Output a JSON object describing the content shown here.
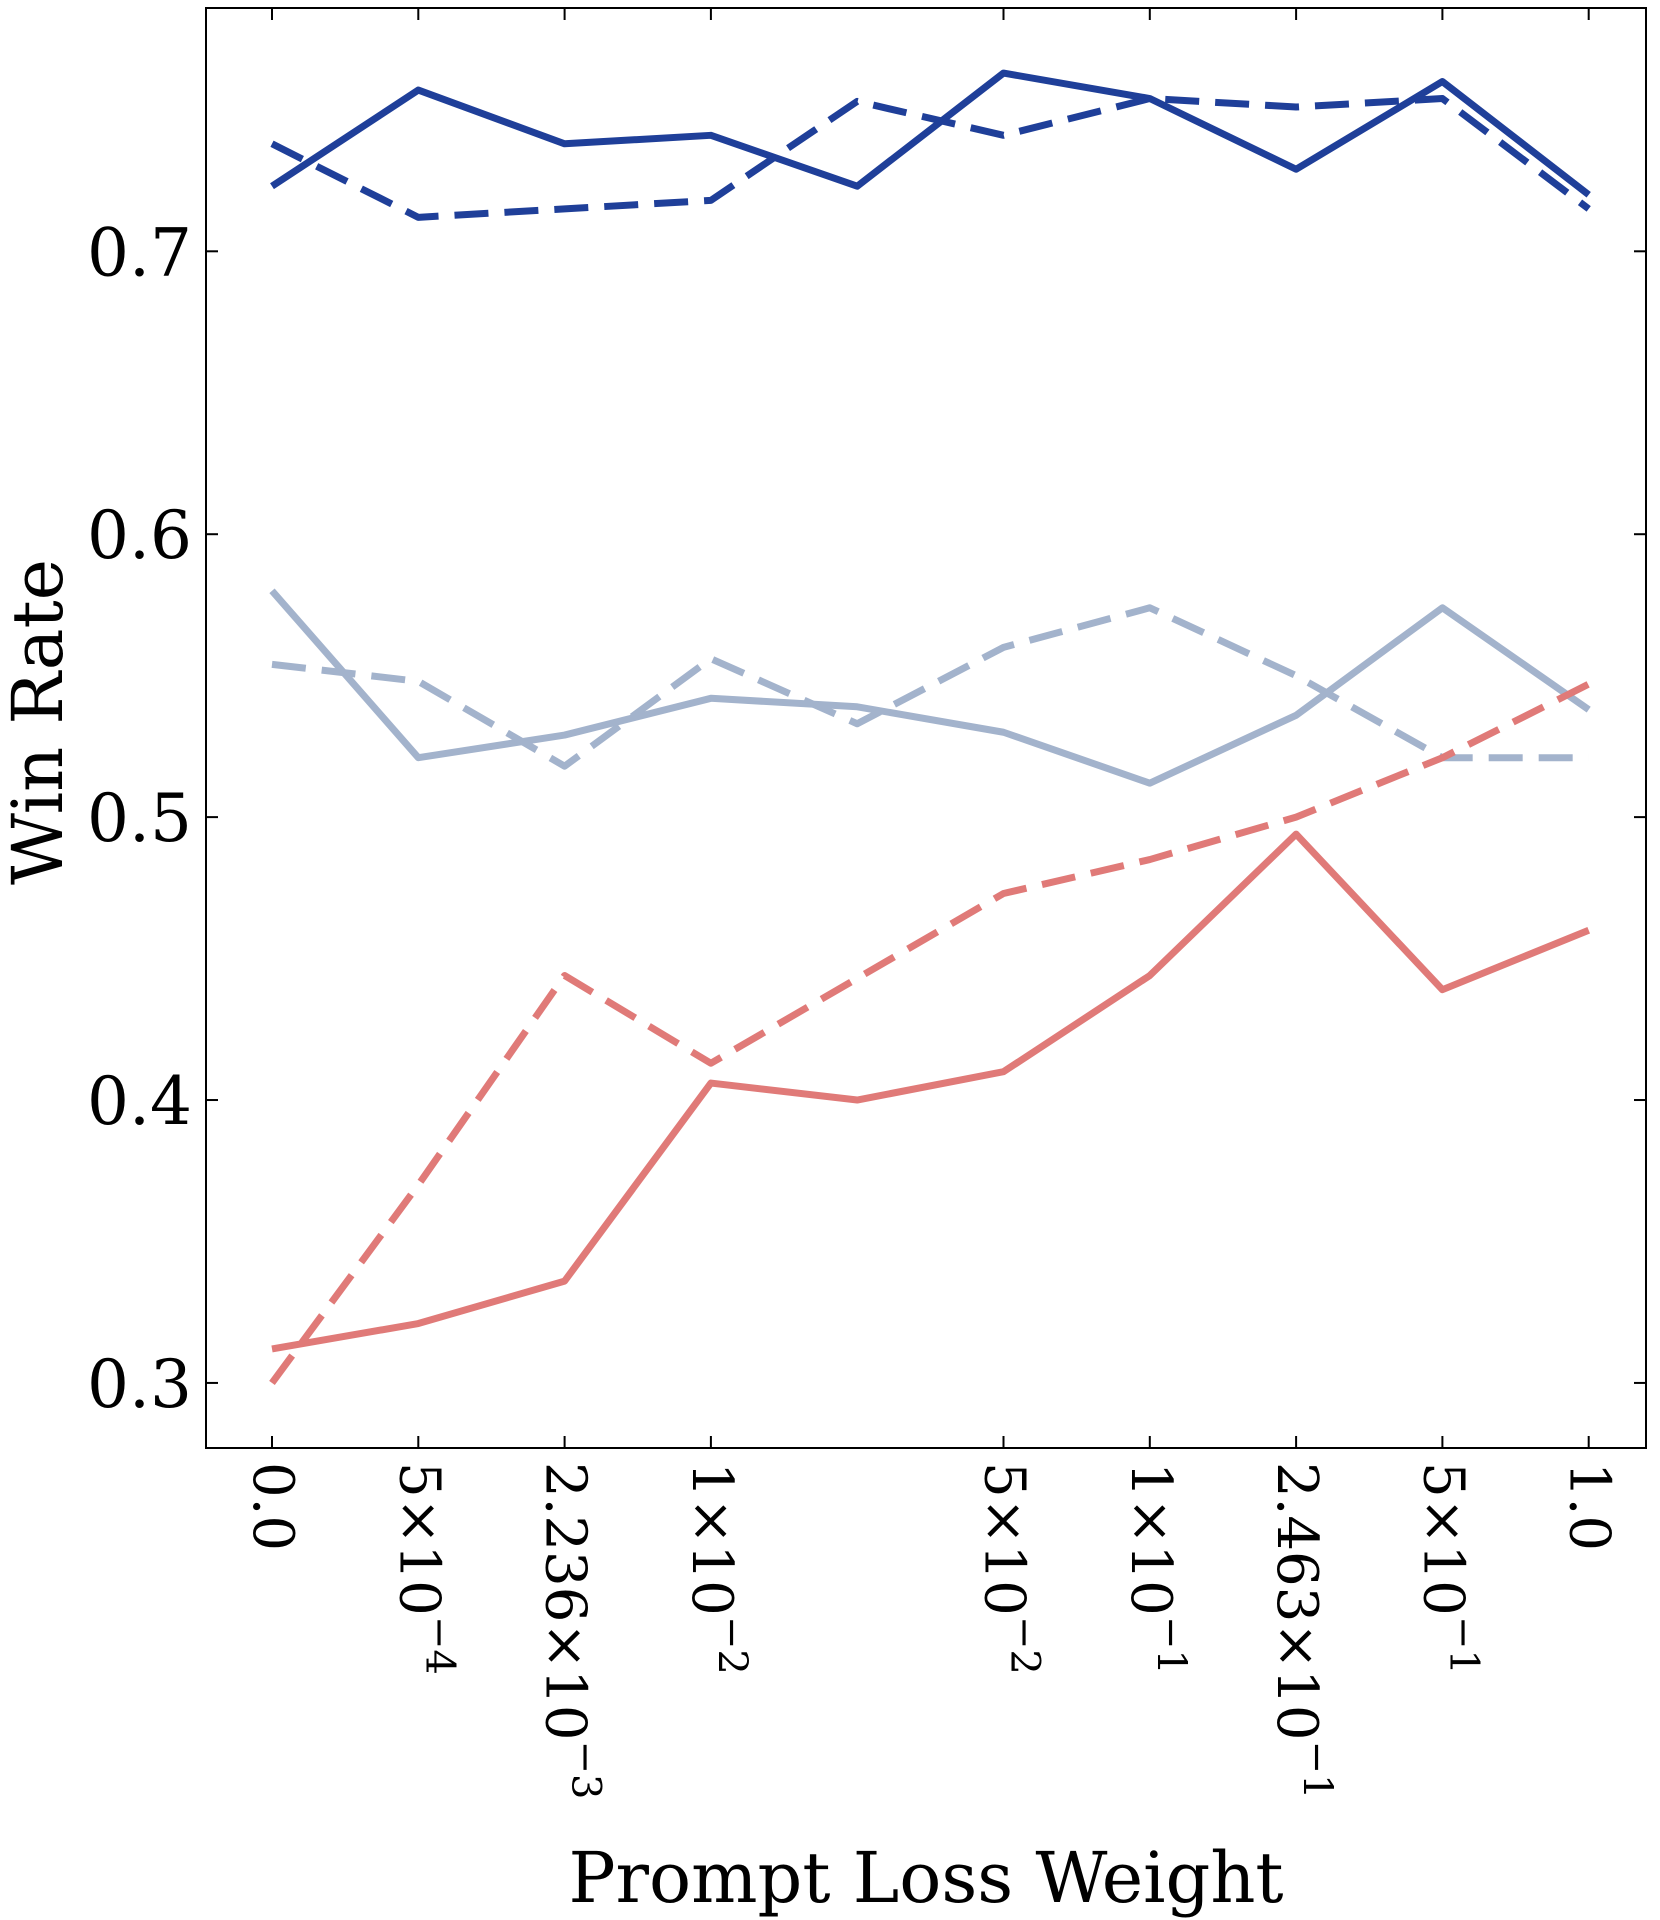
{
  "chart_data": {
    "type": "line",
    "title": "",
    "xlabel": "Prompt Loss Weight",
    "ylabel": "Win Rate",
    "ylim": [
      0.277,
      0.786
    ],
    "grid": false,
    "x_tick_positions": [
      0,
      1,
      2,
      3,
      5,
      6,
      7,
      8,
      9
    ],
    "x_ticks": [
      {
        "base": "0.0",
        "exp": ""
      },
      {
        "base": "5×10",
        "exp": "−4"
      },
      {
        "base": "2.236×10",
        "exp": "−3"
      },
      {
        "base": "1×10",
        "exp": "−2"
      },
      {
        "base": "5×10",
        "exp": "−2"
      },
      {
        "base": "1×10",
        "exp": "−1"
      },
      {
        "base": "2.463×10",
        "exp": "−1"
      },
      {
        "base": "5×10",
        "exp": "−1"
      },
      {
        "base": "1.0",
        "exp": ""
      }
    ],
    "y_ticks": [
      "0.3",
      "0.4",
      "0.5",
      "0.6",
      "0.7"
    ],
    "series": [
      {
        "name": "dark-blue-solid",
        "color": "#1f3f99",
        "dashed": false,
        "x": [
          0,
          1,
          2,
          3,
          4,
          5,
          6,
          7,
          8,
          9
        ],
        "values": [
          0.723,
          0.757,
          0.738,
          0.741,
          0.723,
          0.763,
          0.754,
          0.729,
          0.76,
          0.72
        ]
      },
      {
        "name": "dark-blue-dashed",
        "color": "#1f3f99",
        "dashed": true,
        "x": [
          0,
          1,
          2,
          3,
          4,
          5,
          6,
          7,
          8,
          9
        ],
        "values": [
          0.738,
          0.712,
          0.715,
          0.718,
          0.753,
          0.741,
          0.754,
          0.751,
          0.754,
          0.715
        ]
      },
      {
        "name": "light-blue-solid",
        "color": "#a3b3cc",
        "dashed": false,
        "x": [
          0,
          1,
          2,
          3,
          4,
          5,
          6,
          7,
          8,
          9
        ],
        "values": [
          0.58,
          0.521,
          0.529,
          0.542,
          0.539,
          0.53,
          0.512,
          0.536,
          0.574,
          0.538
        ]
      },
      {
        "name": "light-blue-dashed",
        "color": "#a3b3cc",
        "dashed": true,
        "x": [
          0,
          1,
          2,
          3,
          4,
          5,
          6,
          7,
          8,
          9
        ],
        "values": [
          0.554,
          0.548,
          0.518,
          0.556,
          0.533,
          0.56,
          0.574,
          0.55,
          0.521,
          0.521
        ]
      },
      {
        "name": "red-solid",
        "color": "#e07a78",
        "dashed": false,
        "x": [
          0,
          1,
          2,
          3,
          4,
          5,
          6,
          7,
          8,
          9
        ],
        "values": [
          0.312,
          0.321,
          0.336,
          0.406,
          0.4,
          0.41,
          0.444,
          0.494,
          0.439,
          0.46
        ]
      },
      {
        "name": "red-dashed",
        "color": "#e07a78",
        "dashed": true,
        "x": [
          0,
          1,
          2,
          3,
          4,
          5,
          6,
          7,
          8,
          9
        ],
        "values": [
          0.3,
          0.37,
          0.444,
          0.413,
          0.443,
          0.473,
          0.485,
          0.5,
          0.521,
          0.547
        ]
      }
    ]
  }
}
